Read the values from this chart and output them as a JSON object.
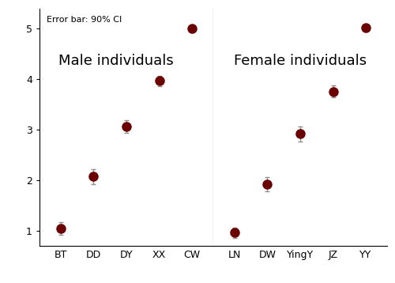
{
  "male_labels": [
    "BT",
    "DD",
    "DY",
    "XX",
    "CW"
  ],
  "male_values": [
    1.05,
    2.08,
    3.07,
    3.97,
    5.0
  ],
  "male_err_lower": [
    0.12,
    0.15,
    0.13,
    0.1,
    0.07
  ],
  "male_err_upper": [
    0.12,
    0.15,
    0.13,
    0.1,
    0.07
  ],
  "female_labels": [
    "LN",
    "DW",
    "YingY",
    "JZ",
    "YY"
  ],
  "female_values": [
    0.97,
    1.92,
    2.92,
    3.76,
    5.02
  ],
  "female_err_lower": [
    0.1,
    0.14,
    0.15,
    0.12,
    0.07
  ],
  "female_err_upper": [
    0.1,
    0.14,
    0.15,
    0.12,
    0.07
  ],
  "dot_color": "#6B0000",
  "ebar_color": "#909090",
  "ylim": [
    0.7,
    5.4
  ],
  "yticks": [
    1,
    2,
    3,
    4,
    5
  ],
  "annotation": "Error bar: 90% CI",
  "male_title": "Male individuals",
  "female_title": "Female individuals",
  "marker_size": 8,
  "elinewidth": 1.0,
  "capsize": 2.5,
  "capthick": 1.0,
  "bg_color": "#ffffff",
  "title_fontsize": 13,
  "tick_fontsize": 9,
  "annot_fontsize": 8
}
